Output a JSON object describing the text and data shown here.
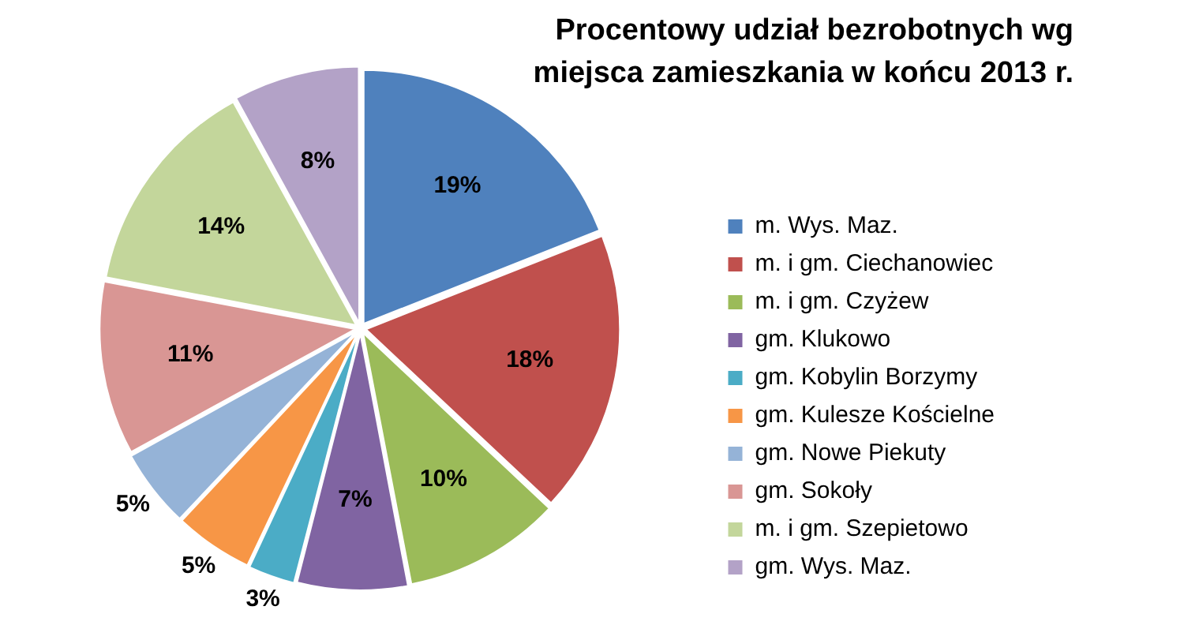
{
  "chart_data": {
    "type": "pie",
    "title": "Procentowy udział bezrobotnych wg miejsca zamieszkania w końcu 2013 r.",
    "categories": [
      "m. Wys. Maz.",
      "m. i gm. Ciechanowiec",
      "m. i gm. Czyżew",
      "gm. Klukowo",
      "gm. Kobylin Borzymy",
      "gm. Kulesze Kościelne",
      "gm. Nowe Piekuty",
      "gm. Sokoły",
      "m. i gm. Szepietowo",
      "gm. Wys. Maz."
    ],
    "values": [
      19,
      18,
      10,
      7,
      3,
      5,
      5,
      11,
      14,
      8
    ],
    "value_labels": [
      "19%",
      "18%",
      "10%",
      "7%",
      "3%",
      "5%",
      "5%",
      "11%",
      "14%",
      "8%"
    ],
    "colors": [
      "#4f81bd",
      "#c0504d",
      "#9bbb59",
      "#8064a2",
      "#4bacc6",
      "#f79646",
      "#95b3d7",
      "#d99694",
      "#c3d69b",
      "#b3a2c7"
    ],
    "legend": "right"
  }
}
